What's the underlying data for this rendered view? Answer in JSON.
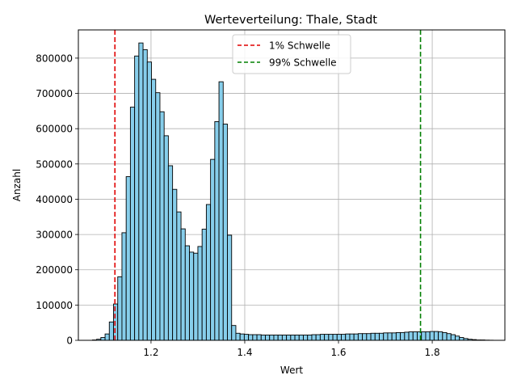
{
  "chart_data": {
    "type": "bar",
    "title": "Werteverteilung: Thale, Stadt",
    "xlabel": "Wert",
    "ylabel": "Anzahl",
    "xlim": [
      1.045,
      1.955
    ],
    "ylim": [
      0,
      880000
    ],
    "xticks": [
      1.2,
      1.4,
      1.6,
      1.8
    ],
    "xtick_labels": [
      "1.2",
      "1.4",
      "1.6",
      "1.8"
    ],
    "yticks": [
      0,
      100000,
      200000,
      300000,
      400000,
      500000,
      600000,
      700000,
      800000
    ],
    "ytick_labels": [
      "0",
      "100000",
      "200000",
      "300000",
      "400000",
      "500000",
      "600000",
      "700000",
      "800000"
    ],
    "grid": true,
    "legend_position": "top-center",
    "bar_color": "#87ceeb",
    "bar_edge_color": "#000000",
    "bins": {
      "start": 1.075,
      "width": 0.009,
      "counts": [
        1000,
        3000,
        8000,
        18000,
        52000,
        103000,
        180000,
        305000,
        464000,
        661000,
        806000,
        843000,
        824000,
        789000,
        740000,
        702000,
        648000,
        580000,
        495000,
        428000,
        364000,
        316000,
        268000,
        250000,
        247000,
        266000,
        315000,
        385000,
        513000,
        620000,
        733000,
        613000,
        298000,
        42000,
        20000,
        18000,
        17000,
        16000,
        16000,
        16000,
        15000,
        15000,
        15000,
        15000,
        15000,
        15000,
        15000,
        15000,
        15000,
        15000,
        15000,
        15000,
        16000,
        16000,
        17000,
        17000,
        17000,
        17000,
        17000,
        17000,
        18000,
        18000,
        18000,
        19000,
        19000,
        19000,
        20000,
        20000,
        20000,
        21000,
        21000,
        21000,
        22000,
        22000,
        23000,
        24000,
        24000,
        24000,
        24000,
        24000,
        25000,
        25000,
        24000,
        22000,
        19000,
        16000,
        12000,
        8000,
        5000,
        3000,
        2000,
        1000,
        1000,
        500,
        300
      ]
    },
    "thresholds": [
      {
        "name": "1% Schwelle",
        "value": 1.123,
        "color": "#e00000"
      },
      {
        "name": "99% Schwelle",
        "value": 1.775,
        "color": "#008000"
      }
    ]
  }
}
